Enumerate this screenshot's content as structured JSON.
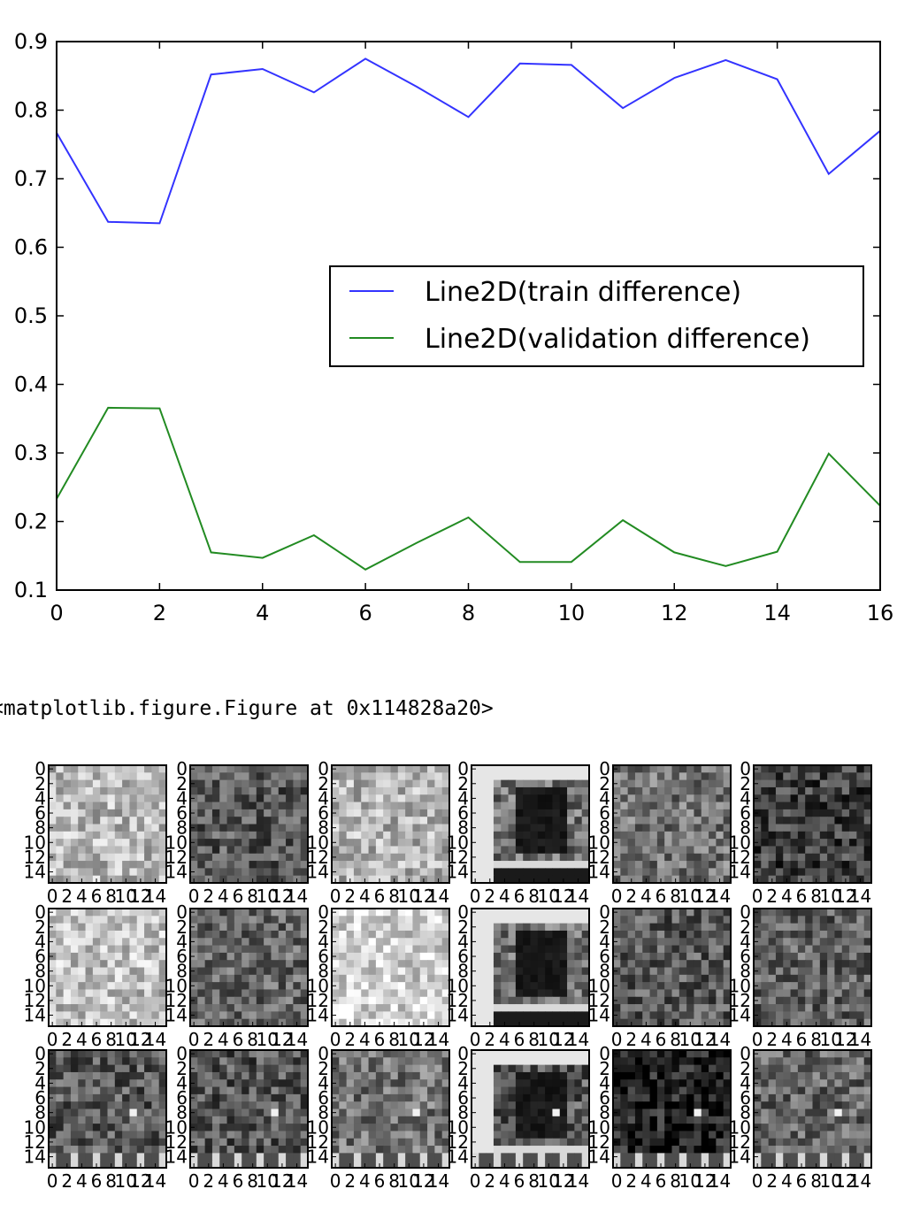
{
  "chart_data": {
    "type": "line",
    "title": "",
    "xlabel": "",
    "ylabel": "",
    "xlim": [
      0,
      16
    ],
    "ylim": [
      0.1,
      0.9
    ],
    "x_ticks": [
      "0",
      "2",
      "4",
      "6",
      "8",
      "10",
      "12",
      "14",
      "16"
    ],
    "y_ticks": [
      "0.1",
      "0.2",
      "0.3",
      "0.4",
      "0.5",
      "0.6",
      "0.7",
      "0.8",
      "0.9"
    ],
    "grid": false,
    "legend_position": "center-right",
    "x": [
      0,
      1,
      2,
      3,
      4,
      5,
      6,
      7,
      8,
      9,
      10,
      11,
      12,
      13,
      14,
      15,
      16
    ],
    "series": [
      {
        "name": "Line2D(train difference)",
        "color": "#3333ff",
        "values": [
          0.767,
          0.637,
          0.635,
          0.852,
          0.86,
          0.826,
          0.875,
          0.834,
          0.79,
          0.868,
          0.866,
          0.803,
          0.847,
          0.873,
          0.845,
          0.707,
          0.77
        ]
      },
      {
        "name": "Line2D(validation difference)",
        "color": "#228b22",
        "values": [
          0.233,
          0.366,
          0.365,
          0.155,
          0.147,
          0.18,
          0.13,
          0.169,
          0.206,
          0.141,
          0.141,
          0.202,
          0.155,
          0.135,
          0.156,
          0.299,
          0.223
        ]
      }
    ]
  },
  "figure_repr": "<matplotlib.figure.Figure at 0x114828a20>",
  "image_grid": {
    "rows": 3,
    "cols": 6,
    "tick_labels": [
      "0",
      "2",
      "4",
      "6",
      "8",
      "10",
      "12",
      "14"
    ],
    "colormap": "gray"
  }
}
